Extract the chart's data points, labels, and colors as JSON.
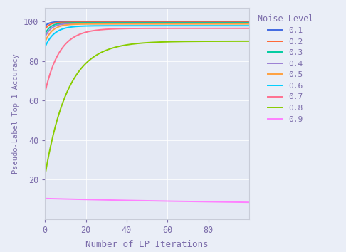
{
  "noise_levels": [
    "0.1",
    "0.2",
    "0.3",
    "0.4",
    "0.5",
    "0.6",
    "0.7",
    "0.8",
    "0.9"
  ],
  "colors": {
    "0.1": "#4169E1",
    "0.2": "#FF6633",
    "0.3": "#00CCA0",
    "0.4": "#9B7FD4",
    "0.5": "#FFA040",
    "0.6": "#00CFFF",
    "0.7": "#FF7090",
    "0.8": "#88CC00",
    "0.9": "#FF80FF"
  },
  "x_max": 100,
  "x_label": "Number of LP Iterations",
  "y_label": "Pseudo-Label Top 1 Accuracy",
  "legend_title": "Noise Level",
  "bg_color": "#E4E9F4",
  "fig_bg": "#EAEEF7",
  "start_values": {
    "0.1": 97.5,
    "0.2": 96.0,
    "0.3": 93.5,
    "0.4": 92.0,
    "0.5": 89.5,
    "0.6": 87.0,
    "0.7": 64.0,
    "0.8": 22.0,
    "0.9": 10.5
  },
  "end_values": {
    "0.1": 99.85,
    "0.2": 99.6,
    "0.3": 99.3,
    "0.4": 99.0,
    "0.5": 98.7,
    "0.6": 97.8,
    "0.7": 96.5,
    "0.8": 90.0,
    "0.9": 7.0
  },
  "rise_rates": {
    "0.1": 0.55,
    "0.2": 0.45,
    "0.3": 0.38,
    "0.4": 0.33,
    "0.5": 0.28,
    "0.6": 0.22,
    "0.7": 0.14,
    "0.8": 0.09,
    "0.9": -0.008
  },
  "label_color": "#7B6CAA",
  "tick_color": "#7B6CAA",
  "grid_color": "#FFFFFF",
  "spine_color": "#C8CCD8"
}
